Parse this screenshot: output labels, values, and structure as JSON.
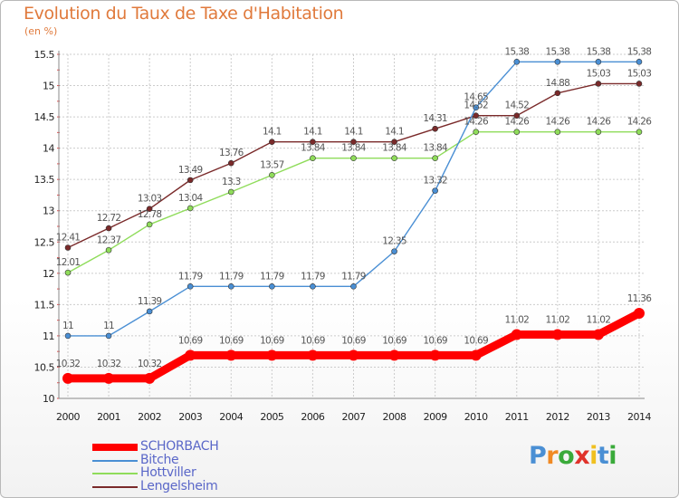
{
  "title": "Evolution du Taux de Taxe d'Habitation",
  "unit_label": "(en %)",
  "colors": {
    "title": "#e07a3c",
    "legend_text": "#5a67c8",
    "grid": "#cccccc",
    "axis_text": "#222222",
    "value_label": "#555555"
  },
  "logo": {
    "letters": [
      "P",
      "r",
      "o",
      "x",
      "i",
      "t",
      "i"
    ],
    "colors": [
      "#4a8fd4",
      "#f08a24",
      "#3aaa3a",
      "#e0322a",
      "#f0c020",
      "#4a8fd4",
      "#3aaa3a"
    ]
  },
  "chart_data": {
    "type": "line",
    "title": "Evolution du Taux de Taxe d'Habitation",
    "ylabel": "(en %)",
    "xlabel": "",
    "x": [
      "2000",
      "2001",
      "2002",
      "2003",
      "2004",
      "2005",
      "2006",
      "2007",
      "2008",
      "2009",
      "2010",
      "2011",
      "2012",
      "2013",
      "2014"
    ],
    "y_ticks": [
      "10",
      "10.5",
      "11",
      "11.5",
      "12",
      "12.5",
      "13",
      "13.5",
      "14",
      "14.5",
      "15",
      "15.5"
    ],
    "ylim": [
      10,
      15.5
    ],
    "grid": true,
    "legend_position": "bottom-left",
    "series": [
      {
        "name": "SCHORBACH",
        "color": "#ff0000",
        "values": [
          10.32,
          10.32,
          10.32,
          10.69,
          10.69,
          10.69,
          10.69,
          10.69,
          10.69,
          10.69,
          10.69,
          11.02,
          11.02,
          11.02,
          11.36
        ],
        "labels": [
          "10.32",
          "10.32",
          "10.32",
          "10.69",
          "10.69",
          "10.69",
          "10.69",
          "10.69",
          "10.69",
          "10.69",
          "10.69",
          "11.02",
          "11.02",
          "11.02",
          "11.36"
        ]
      },
      {
        "name": "Bitche",
        "color": "#4a8fd4",
        "values": [
          11,
          11,
          11.39,
          11.79,
          11.79,
          11.79,
          11.79,
          11.79,
          12.35,
          13.32,
          14.65,
          15.38,
          15.38,
          15.38,
          15.38
        ],
        "labels": [
          "11",
          "11",
          "11.39",
          "11.79",
          "11.79",
          "11.79",
          "11.79",
          "11.79",
          "12.35",
          "13.32",
          "14.65",
          "15.38",
          "15.38",
          "15.38",
          "15.38"
        ]
      },
      {
        "name": "Hottviller",
        "color": "#8fdc5a",
        "values": [
          12.01,
          12.37,
          12.78,
          13.04,
          13.3,
          13.57,
          13.84,
          13.84,
          13.84,
          13.84,
          14.26,
          14.26,
          14.26,
          14.26,
          14.26
        ],
        "labels": [
          "12.01",
          "12.37",
          "12.78",
          "13.04",
          "13.3",
          "13.57",
          "13.84",
          "13.84",
          "13.84",
          "13.84",
          "14.26",
          "14.26",
          "14.26",
          "14.26",
          "14.26"
        ]
      },
      {
        "name": "Lengelsheim",
        "color": "#7a2a2a",
        "values": [
          12.41,
          12.72,
          13.03,
          13.49,
          13.76,
          14.1,
          14.1,
          14.1,
          14.1,
          14.31,
          14.52,
          14.52,
          14.88,
          15.03,
          15.03
        ],
        "labels": [
          "12.41",
          "12.72",
          "13.03",
          "13.49",
          "13.76",
          "14.1",
          "14.1",
          "14.1",
          "14.1",
          "14.31",
          "14.52",
          "14.52",
          "14.88",
          "15.03",
          "15.03"
        ]
      }
    ]
  }
}
